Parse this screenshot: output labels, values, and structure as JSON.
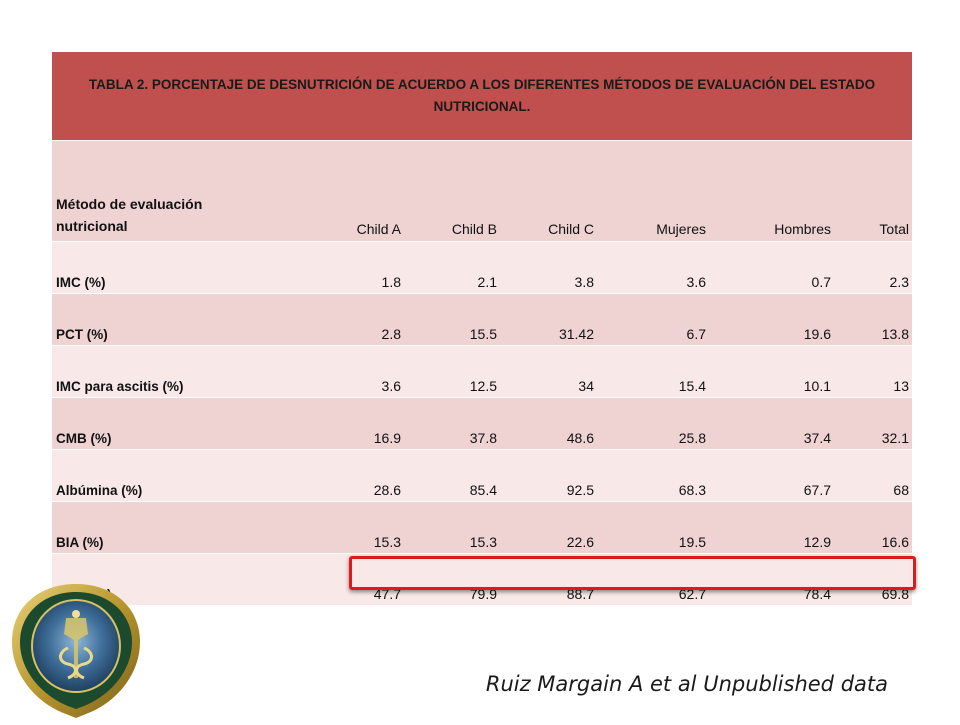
{
  "table": {
    "title": "TABLA 2. PORCENTAJE DE DESNUTRICIÓN DE ACUERDO A LOS DIFERENTES MÉTODOS DE EVALUACIÓN DEL ESTADO NUTRICIONAL.",
    "header": {
      "method_line1": "Método de evaluación",
      "method_line2": "nutricional",
      "columns": [
        "Child A",
        "Child B",
        "Child C",
        "Mujeres",
        "Hombres",
        "Total"
      ]
    },
    "rows": [
      {
        "label": "IMC (%)",
        "values": [
          "1.8",
          "2.1",
          "3.8",
          "3.6",
          "0.7",
          "2.3"
        ]
      },
      {
        "label": "PCT (%)",
        "values": [
          "2.8",
          "15.5",
          "31.42",
          "6.7",
          "19.6",
          "13.8"
        ]
      },
      {
        "label": "IMC para ascitis (%)",
        "values": [
          "3.6",
          "12.5",
          "34",
          "15.4",
          "10.1",
          "13"
        ]
      },
      {
        "label": "CMB (%)",
        "values": [
          "16.9",
          "37.8",
          "48.6",
          "25.8",
          "37.4",
          "32.1"
        ]
      },
      {
        "label": "Albúmina (%)",
        "values": [
          "28.6",
          "85.4",
          "92.5",
          "68.3",
          "67.7",
          "68"
        ]
      },
      {
        "label": "BIA (%)",
        "values": [
          "15.3",
          "15.3",
          "22.6",
          "19.5",
          "12.9",
          "16.6"
        ]
      },
      {
        "label": "BIVA (%)",
        "values": [
          "47.7",
          "79.9",
          "88.7",
          "62.7",
          "78.4",
          "69.8"
        ]
      }
    ]
  },
  "citation": "Ruiz Margain A et al Unpublished data",
  "colors": {
    "title_bg": "#c0504d",
    "header_bg": "#efd3d2",
    "row_light": "#f8e9e8",
    "row_dark": "#efd3d2",
    "highlight": "#e0191c"
  },
  "icons": {
    "seal": "institution-seal-icon"
  }
}
